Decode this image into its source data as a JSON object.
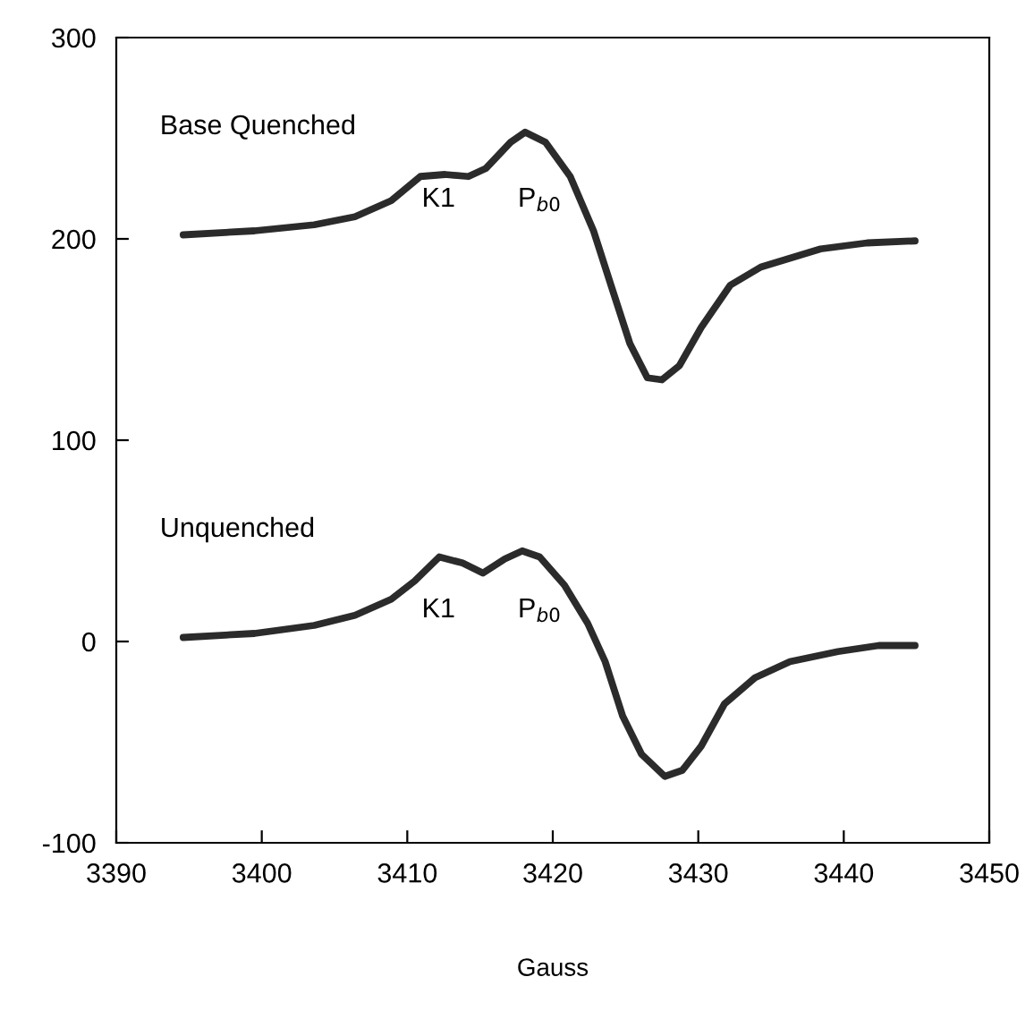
{
  "chart_data": {
    "type": "line",
    "xlabel": "Gauss",
    "xlim": [
      3390,
      3450
    ],
    "ylim": [
      -100,
      300
    ],
    "xticks": [
      3390,
      3400,
      3410,
      3420,
      3430,
      3440,
      3450
    ],
    "yticks": [
      -100,
      0,
      100,
      200,
      300
    ],
    "grid": false,
    "marker": "none",
    "line_style": "solid",
    "series": [
      {
        "color": "#2b2b2b",
        "x": [
          3394.6,
          3399.5,
          3403.6,
          3406.4,
          3408.9,
          3410.9,
          3412.6,
          3414.2,
          3415.4,
          3417.1,
          3418.1,
          3419.5,
          3421.2,
          3422.8,
          3424.0,
          3425.3,
          3426.5,
          3427.5,
          3428.7,
          3430.2,
          3432.2,
          3434.3,
          3438.4,
          3441.6,
          3444.9
        ],
        "values": [
          202,
          204,
          207,
          211,
          219,
          231,
          232,
          231,
          235,
          248,
          253,
          248,
          231,
          204,
          177,
          148,
          131,
          130,
          137,
          156,
          177,
          186,
          195,
          198,
          199
        ]
      },
      {
        "color": "#2b2b2b",
        "x": [
          3394.6,
          3399.5,
          3403.6,
          3406.4,
          3408.9,
          3410.5,
          3412.2,
          3413.8,
          3415.2,
          3416.7,
          3417.9,
          3419.1,
          3420.8,
          3422.4,
          3423.6,
          3424.8,
          3426.1,
          3427.7,
          3428.9,
          3430.2,
          3431.8,
          3433.9,
          3436.3,
          3439.6,
          3442.4,
          3444.9
        ],
        "values": [
          2,
          4,
          8,
          13,
          21,
          30,
          42,
          39,
          34,
          41,
          45,
          42,
          28,
          9,
          -10,
          -37,
          -56,
          -67,
          -64,
          -52,
          -31,
          -18,
          -10,
          -5,
          -2,
          -2
        ]
      }
    ],
    "annotations": [
      "Base Quenched",
      "K1",
      "P$_{b0}$",
      "Unquenched",
      "K1",
      "P$_{b0}$"
    ]
  }
}
